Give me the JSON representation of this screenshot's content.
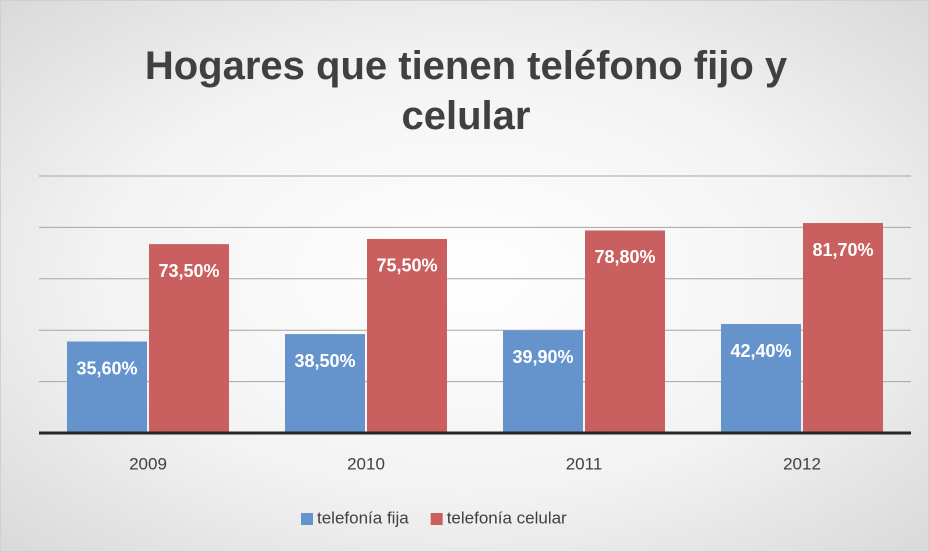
{
  "chart_data": {
    "type": "bar",
    "title": "Hogares que tienen teléfono fijo y celular",
    "categories": [
      "2009",
      "2010",
      "2011",
      "2012"
    ],
    "series": [
      {
        "name": "telefonía fija",
        "color": "#6594cc",
        "values": [
          35.6,
          38.5,
          39.9,
          42.4
        ],
        "value_labels": [
          "35,60%",
          "38,50%",
          "39,90%",
          "42,40%"
        ]
      },
      {
        "name": "telefonía celular",
        "color": "#c9605f",
        "values": [
          73.5,
          75.5,
          78.8,
          81.7
        ],
        "value_labels": [
          "73,50%",
          "75,50%",
          "78,80%",
          "81,70%"
        ]
      }
    ],
    "ylim": [
      0,
      100
    ],
    "yticks": [
      0,
      20,
      40,
      60,
      80,
      100
    ],
    "grid": true,
    "legend": "bottom"
  }
}
